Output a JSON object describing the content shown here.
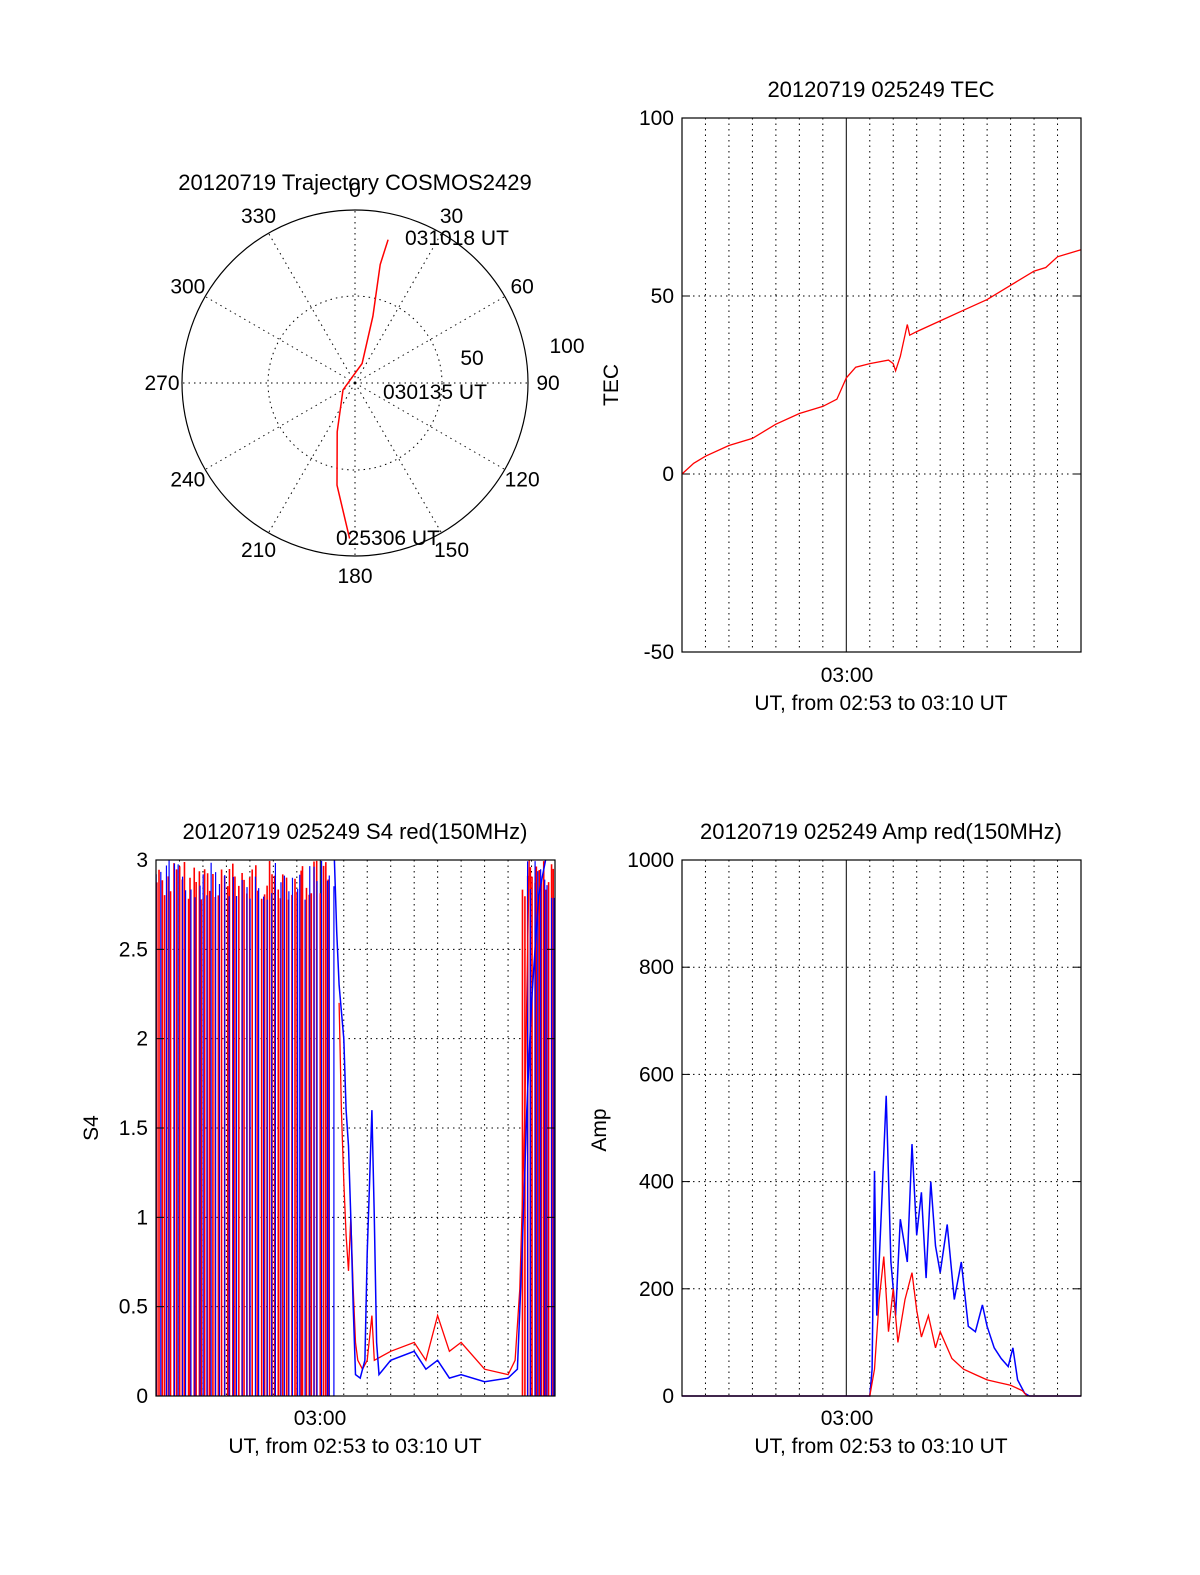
{
  "chart_data": [
    {
      "type": "polar",
      "title": "20120719 Trajectory COSMOS2429",
      "angle_labels": [
        "0",
        "30",
        "60",
        "90",
        "120",
        "150",
        "180",
        "210",
        "240",
        "270",
        "300",
        "330"
      ],
      "radius_labels": [
        "50",
        "100"
      ],
      "rlim": [
        0,
        100
      ],
      "grid": true,
      "trajectory": {
        "color": "#ff0000",
        "points": [
          {
            "az": 182,
            "r": 90
          },
          {
            "az": 190,
            "r": 60
          },
          {
            "az": 200,
            "r": 30
          },
          {
            "az": 240,
            "r": 8
          },
          {
            "az": 20,
            "r": 12
          },
          {
            "az": 15,
            "r": 40
          },
          {
            "az": 12,
            "r": 70
          },
          {
            "az": 13,
            "r": 85
          }
        ]
      },
      "annotations": [
        {
          "text": "031018 UT",
          "at": "end"
        },
        {
          "text": "030135 UT",
          "at": "center"
        },
        {
          "text": "025306 UT",
          "at": "start"
        }
      ]
    },
    {
      "type": "line",
      "title": "20120719 025249 TEC",
      "ylabel": "TEC",
      "xlabel": "UT, from 02:53 to 03:10 UT",
      "xtick_label": "03:00",
      "ylim": [
        -50,
        100
      ],
      "yticks": [
        "-50",
        "0",
        "50",
        "100"
      ],
      "xlim_minutes": [
        0,
        17
      ],
      "grid": true,
      "series": [
        {
          "color": "#ff0000",
          "points": [
            [
              0,
              0
            ],
            [
              0.5,
              3
            ],
            [
              1,
              5
            ],
            [
              2,
              8
            ],
            [
              3,
              10
            ],
            [
              3.5,
              12
            ],
            [
              4,
              14
            ],
            [
              5,
              17
            ],
            [
              6,
              19
            ],
            [
              6.6,
              21
            ],
            [
              7,
              27
            ],
            [
              7.4,
              30
            ],
            [
              8,
              31
            ],
            [
              8.8,
              32
            ],
            [
              9,
              31
            ],
            [
              9.1,
              29
            ],
            [
              9.3,
              33
            ],
            [
              9.6,
              42
            ],
            [
              9.7,
              39
            ],
            [
              10,
              40
            ],
            [
              11,
              43
            ],
            [
              12,
              46
            ],
            [
              13,
              49
            ],
            [
              14,
              53
            ],
            [
              15,
              57
            ],
            [
              15.5,
              58
            ],
            [
              16,
              61
            ],
            [
              17,
              63
            ]
          ]
        }
      ]
    },
    {
      "type": "line",
      "title": "20120719 025249 S4 red(150MHz)",
      "ylabel": "S4",
      "xlabel": "UT, from 02:53 to 03:10 UT",
      "xtick_label": "03:00",
      "ylim": [
        0,
        3
      ],
      "yticks": [
        "0",
        "0.5",
        "1",
        "1.5",
        "2",
        "2.5",
        "3"
      ],
      "xlim_minutes": [
        0,
        17
      ],
      "grid": true,
      "series": [
        {
          "color": "#ff0000",
          "points": [
            [
              7.8,
              2.2
            ],
            [
              7.9,
              1.6
            ],
            [
              8,
              1.2
            ],
            [
              8.1,
              0.9
            ],
            [
              8.2,
              0.7
            ],
            [
              8.3,
              1.0
            ],
            [
              8.4,
              0.6
            ],
            [
              8.5,
              0.3
            ],
            [
              8.6,
              0.2
            ],
            [
              8.8,
              0.15
            ],
            [
              9,
              0.2
            ],
            [
              9.2,
              0.45
            ],
            [
              9.3,
              0.2
            ],
            [
              10,
              0.25
            ],
            [
              11,
              0.3
            ],
            [
              11.5,
              0.2
            ],
            [
              12,
              0.45
            ],
            [
              12.5,
              0.25
            ],
            [
              13,
              0.3
            ],
            [
              14,
              0.15
            ],
            [
              15,
              0.12
            ],
            [
              15.3,
              0.2
            ],
            [
              15.5,
              0.6
            ],
            [
              15.7,
              1.5
            ],
            [
              15.9,
              3
            ]
          ]
        },
        {
          "color": "#0000ff",
          "points": [
            [
              7.6,
              3
            ],
            [
              7.7,
              2.6
            ],
            [
              7.8,
              2.3
            ],
            [
              8,
              2.0
            ],
            [
              8.1,
              1.6
            ],
            [
              8.2,
              1.4
            ],
            [
              8.3,
              1.0
            ],
            [
              8.4,
              0.5
            ],
            [
              8.5,
              0.12
            ],
            [
              8.7,
              0.1
            ],
            [
              8.9,
              0.2
            ],
            [
              9,
              0.8
            ],
            [
              9.1,
              1.2
            ],
            [
              9.2,
              1.6
            ],
            [
              9.3,
              1.0
            ],
            [
              9.4,
              0.3
            ],
            [
              9.5,
              0.12
            ],
            [
              10,
              0.2
            ],
            [
              11,
              0.25
            ],
            [
              11.5,
              0.15
            ],
            [
              12,
              0.2
            ],
            [
              12.5,
              0.1
            ],
            [
              13,
              0.12
            ],
            [
              14,
              0.08
            ],
            [
              15,
              0.1
            ],
            [
              15.4,
              0.15
            ],
            [
              15.6,
              0.8
            ],
            [
              15.8,
              1.6
            ],
            [
              16,
              2.2
            ],
            [
              16.3,
              2.8
            ],
            [
              16.6,
              3
            ]
          ]
        }
      ]
    },
    {
      "type": "line",
      "title": "20120719 025249 Amp red(150MHz)",
      "ylabel": "Amp",
      "xlabel": "UT, from 02:53 to 03:10 UT",
      "xtick_label": "03:00",
      "ylim": [
        0,
        1000
      ],
      "yticks": [
        "0",
        "200",
        "400",
        "600",
        "800",
        "1000"
      ],
      "xlim_minutes": [
        0,
        17
      ],
      "grid": true,
      "series": [
        {
          "color": "#ff0000",
          "points": [
            [
              0,
              0
            ],
            [
              8,
              0
            ],
            [
              8.2,
              50
            ],
            [
              8.4,
              180
            ],
            [
              8.6,
              260
            ],
            [
              8.8,
              120
            ],
            [
              9,
              200
            ],
            [
              9.2,
              100
            ],
            [
              9.5,
              180
            ],
            [
              9.8,
              230
            ],
            [
              10,
              160
            ],
            [
              10.2,
              110
            ],
            [
              10.5,
              150
            ],
            [
              10.8,
              90
            ],
            [
              11,
              120
            ],
            [
              11.5,
              70
            ],
            [
              12,
              50
            ],
            [
              12.5,
              40
            ],
            [
              13,
              30
            ],
            [
              13.5,
              25
            ],
            [
              14,
              20
            ],
            [
              14.5,
              10
            ],
            [
              14.7,
              0
            ],
            [
              17,
              0
            ]
          ]
        },
        {
          "color": "#0000ff",
          "points": [
            [
              0,
              0
            ],
            [
              8,
              0
            ],
            [
              8.1,
              50
            ],
            [
              8.2,
              420
            ],
            [
              8.3,
              150
            ],
            [
              8.5,
              350
            ],
            [
              8.7,
              560
            ],
            [
              8.9,
              250
            ],
            [
              9.1,
              150
            ],
            [
              9.3,
              330
            ],
            [
              9.6,
              250
            ],
            [
              9.8,
              470
            ],
            [
              10,
              300
            ],
            [
              10.2,
              380
            ],
            [
              10.4,
              220
            ],
            [
              10.6,
              400
            ],
            [
              10.8,
              280
            ],
            [
              11,
              230
            ],
            [
              11.3,
              320
            ],
            [
              11.6,
              180
            ],
            [
              11.9,
              250
            ],
            [
              12.2,
              130
            ],
            [
              12.5,
              120
            ],
            [
              12.8,
              170
            ],
            [
              13,
              130
            ],
            [
              13.3,
              90
            ],
            [
              13.6,
              70
            ],
            [
              13.9,
              55
            ],
            [
              14.1,
              90
            ],
            [
              14.3,
              30
            ],
            [
              14.6,
              5
            ],
            [
              14.8,
              0
            ],
            [
              17,
              0
            ]
          ]
        }
      ]
    }
  ]
}
